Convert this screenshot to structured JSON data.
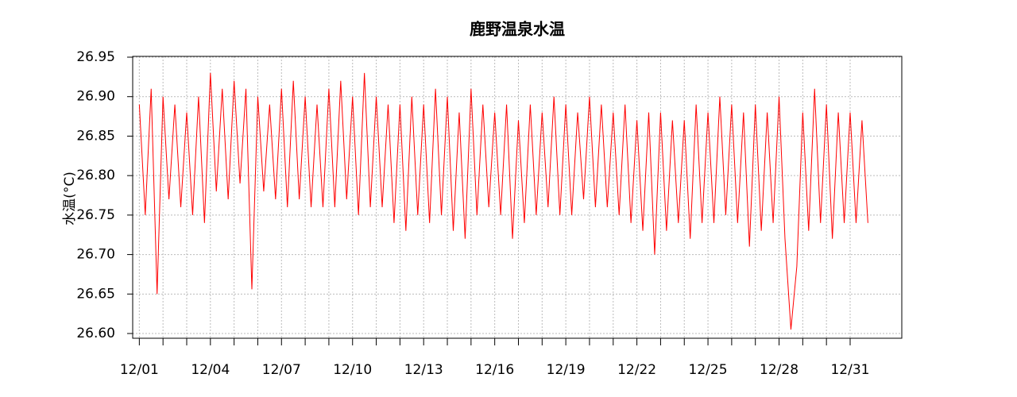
{
  "chart_data": {
    "type": "line",
    "title": "鹿野温泉水温",
    "y_label": "水温(°C)",
    "x": [
      1,
      1.25,
      1.5,
      1.75,
      2,
      2.25,
      2.5,
      2.75,
      3,
      3.25,
      3.5,
      3.75,
      4,
      4.25,
      4.5,
      4.75,
      5,
      5.25,
      5.5,
      5.75,
      6,
      6.25,
      6.5,
      6.75,
      7,
      7.25,
      7.5,
      7.75,
      8,
      8.25,
      8.5,
      8.75,
      9,
      9.25,
      9.5,
      9.75,
      10,
      10.25,
      10.5,
      10.75,
      11,
      11.25,
      11.5,
      11.75,
      12,
      12.25,
      12.5,
      12.75,
      13,
      13.25,
      13.5,
      13.75,
      14,
      14.25,
      14.5,
      14.75,
      15,
      15.25,
      15.5,
      15.75,
      16,
      16.25,
      16.5,
      16.75,
      17,
      17.25,
      17.5,
      17.75,
      18,
      18.25,
      18.5,
      18.75,
      19,
      19.25,
      19.5,
      19.75,
      20,
      20.25,
      20.5,
      20.75,
      21,
      21.25,
      21.5,
      21.75,
      22,
      22.25,
      22.5,
      22.75,
      23,
      23.25,
      23.5,
      23.75,
      24,
      24.25,
      24.5,
      24.75,
      25,
      25.25,
      25.5,
      25.75,
      26,
      26.25,
      26.5,
      26.75,
      27,
      27.25,
      27.5,
      27.75,
      28,
      28.25,
      28.5,
      28.75,
      29,
      29.25,
      29.5,
      29.75,
      30,
      30.25,
      30.5,
      30.75,
      31,
      31.25,
      31.5,
      31.75
    ],
    "series": [
      {
        "name": "水温",
        "color": "#ff0000",
        "values": [
          26.89,
          26.75,
          26.91,
          26.65,
          26.9,
          26.77,
          26.89,
          26.76,
          26.88,
          26.75,
          26.9,
          26.74,
          26.93,
          26.78,
          26.91,
          26.77,
          26.92,
          26.79,
          26.91,
          26.656,
          26.9,
          26.78,
          26.89,
          26.77,
          26.91,
          26.76,
          26.92,
          26.77,
          26.9,
          26.76,
          26.89,
          26.76,
          26.91,
          26.76,
          26.92,
          26.77,
          26.9,
          26.75,
          26.93,
          26.76,
          26.9,
          26.76,
          26.89,
          26.74,
          26.89,
          26.73,
          26.9,
          26.75,
          26.89,
          26.74,
          26.91,
          26.75,
          26.9,
          26.73,
          26.88,
          26.72,
          26.91,
          26.75,
          26.89,
          26.76,
          26.88,
          26.75,
          26.89,
          26.72,
          26.87,
          26.74,
          26.89,
          26.75,
          26.88,
          26.76,
          26.9,
          26.75,
          26.89,
          26.75,
          26.88,
          26.77,
          26.9,
          26.76,
          26.89,
          26.76,
          26.88,
          26.75,
          26.89,
          26.74,
          26.87,
          26.73,
          26.88,
          26.7,
          26.88,
          26.73,
          26.87,
          26.74,
          26.87,
          26.72,
          26.89,
          26.74,
          26.88,
          26.74,
          26.9,
          26.75,
          26.89,
          26.74,
          26.88,
          26.71,
          26.89,
          26.73,
          26.88,
          26.74,
          26.9,
          26.72,
          26.605,
          26.685,
          26.88,
          26.73,
          26.91,
          26.74,
          26.89,
          26.72,
          26.88,
          26.74,
          26.88,
          26.74,
          26.87,
          26.74
        ]
      }
    ],
    "xlim": [
      0.72,
      33.18
    ],
    "xticks": [
      {
        "value": 1,
        "label": "12/01"
      },
      {
        "value": 4,
        "label": "12/04"
      },
      {
        "value": 7,
        "label": "12/07"
      },
      {
        "value": 10,
        "label": "12/10"
      },
      {
        "value": 13,
        "label": "12/13"
      },
      {
        "value": 16,
        "label": "12/16"
      },
      {
        "value": 19,
        "label": "12/19"
      },
      {
        "value": 22,
        "label": "12/22"
      },
      {
        "value": 25,
        "label": "12/25"
      },
      {
        "value": 28,
        "label": "12/28"
      },
      {
        "value": 31,
        "label": "12/31"
      }
    ],
    "xminor_ticks": [
      2,
      3,
      5,
      6,
      8,
      9,
      11,
      12,
      14,
      15,
      17,
      18,
      20,
      21,
      23,
      24,
      26,
      27,
      29,
      30
    ],
    "ylim": [
      26.594,
      26.951
    ],
    "yticks": [
      {
        "value": 26.6,
        "label": "26.60"
      },
      26.65,
      {
        "value": 26.7,
        "label": "26.70"
      },
      26.75,
      {
        "value": 26.8,
        "label": "26.80"
      },
      26.85,
      {
        "value": 26.9,
        "label": "26.90"
      },
      26.95
    ],
    "grid": true
  }
}
